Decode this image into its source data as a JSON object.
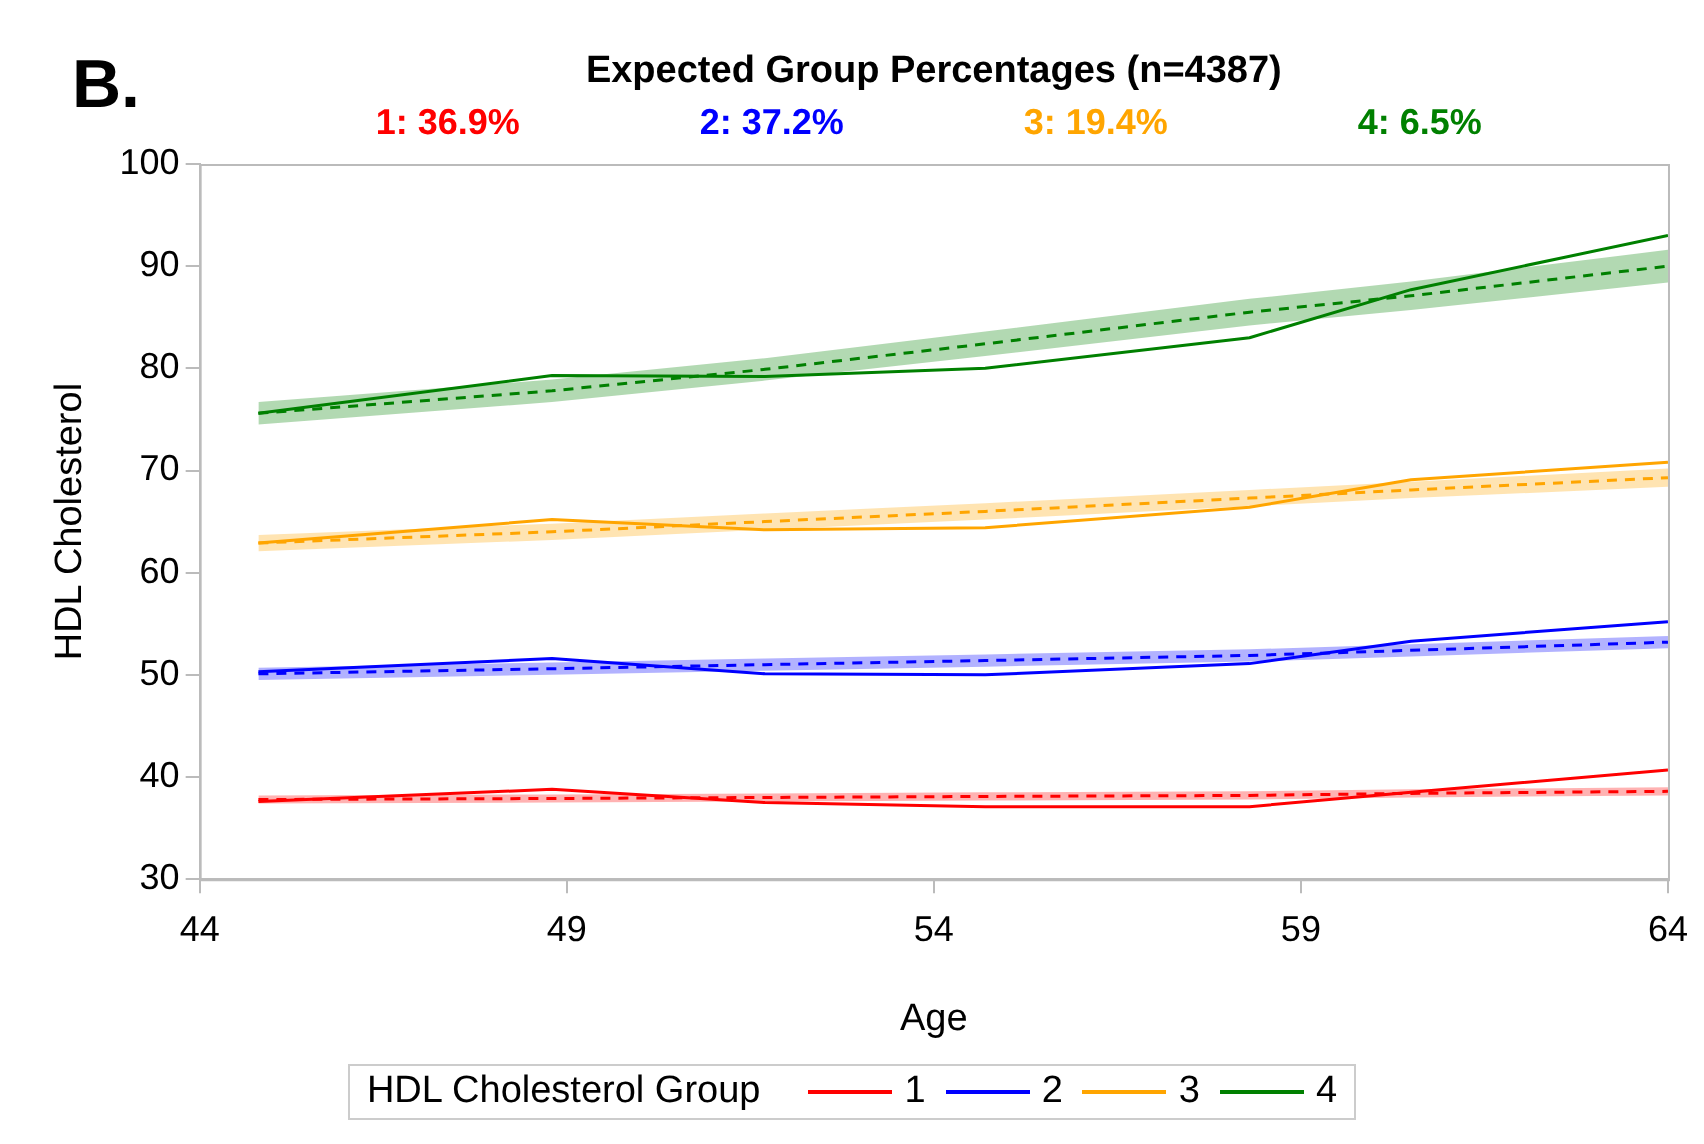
{
  "chart_data": {
    "type": "line",
    "title": "Expected Group Percentages (n=4387)",
    "xlabel": "Age",
    "ylabel": "HDL Cholesterol",
    "legend_title": "HDL Cholesterol Group",
    "annotations": [
      "B.",
      "1: 36.9%",
      "2: 37.2%",
      "3: 19.4%",
      "4: 6.5%"
    ],
    "x": [
      44.8,
      48.8,
      51.7,
      54.7,
      58.3,
      60.5,
      64
    ],
    "xlim": [
      44,
      64
    ],
    "xticks": [
      44,
      49,
      54,
      59,
      64
    ],
    "ylim": [
      30,
      100
    ],
    "yticks": [
      30,
      40,
      50,
      60,
      70,
      80,
      90,
      100
    ],
    "grid": false,
    "legend": "bottom",
    "marker": "none",
    "series": [
      {
        "name": "1",
        "color": "#ff0000",
        "line_style": "solid",
        "values": [
          37.6,
          38.8,
          37.5,
          37.1,
          37.1,
          38.5,
          40.7
        ]
      },
      {
        "name": "2",
        "color": "#0000ff",
        "line_style": "solid",
        "values": [
          50.3,
          51.6,
          50.1,
          50.0,
          51.1,
          53.3,
          55.2
        ]
      },
      {
        "name": "3",
        "color": "#ffa500",
        "line_style": "solid",
        "values": [
          62.9,
          65.2,
          64.2,
          64.4,
          66.4,
          69.1,
          70.8
        ]
      },
      {
        "name": "4",
        "color": "#008000",
        "line_style": "solid",
        "values": [
          75.6,
          79.3,
          79.2,
          80.0,
          83.0,
          87.7,
          93.0
        ]
      },
      {
        "color": "#ff0000",
        "line_style": "dashed",
        "values": [
          37.8,
          37.9,
          38.0,
          38.1,
          38.2,
          38.4,
          38.6
        ],
        "lower": [
          37.4,
          37.5,
          37.6,
          37.7,
          37.8,
          38.0,
          38.2
        ],
        "upper": [
          38.2,
          38.3,
          38.4,
          38.5,
          38.6,
          38.8,
          39.0
        ]
      },
      {
        "color": "#0000ff",
        "line_style": "dashed",
        "values": [
          50.1,
          50.6,
          51.0,
          51.4,
          51.9,
          52.4,
          53.2
        ],
        "lower": [
          49.5,
          50.0,
          50.4,
          50.8,
          51.3,
          51.8,
          52.6
        ],
        "upper": [
          50.7,
          51.2,
          51.6,
          52.0,
          52.5,
          53.0,
          53.8
        ]
      },
      {
        "color": "#ffa500",
        "line_style": "dashed",
        "values": [
          62.9,
          64.0,
          65.0,
          66.0,
          67.3,
          68.1,
          69.3
        ],
        "lower": [
          62.1,
          63.2,
          64.2,
          65.2,
          66.5,
          67.3,
          68.4
        ],
        "upper": [
          63.7,
          64.8,
          65.8,
          66.8,
          68.1,
          68.9,
          70.2
        ]
      },
      {
        "color": "#008000",
        "line_style": "dashed",
        "values": [
          75.6,
          77.8,
          79.9,
          82.4,
          85.5,
          87.1,
          90.0
        ],
        "lower": [
          74.5,
          76.7,
          78.8,
          81.2,
          84.2,
          85.7,
          88.4
        ],
        "upper": [
          76.7,
          78.9,
          81.0,
          83.6,
          86.8,
          88.5,
          91.6
        ]
      }
    ]
  }
}
